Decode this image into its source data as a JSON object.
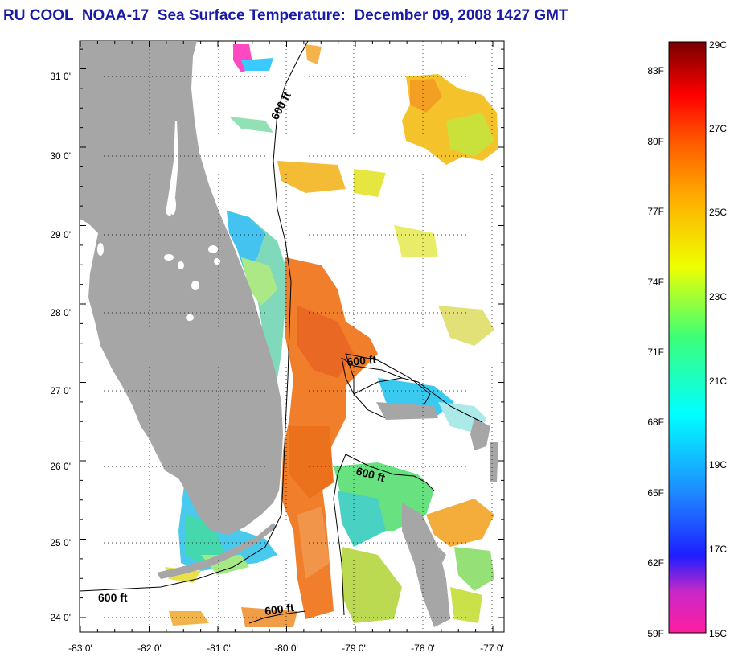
{
  "title": "RU COOL  NOAA-17  Sea Surface Temperature:  December 09, 2008 1427 GMT",
  "map": {
    "lat_ticks": [
      "31 0'",
      "30 0'",
      "29 0'",
      "28 0'",
      "27 0'",
      "26 0'",
      "25 0'",
      "24 0'"
    ],
    "lon_ticks": [
      "-83 0'",
      "-82 0'",
      "-81 0'",
      "-80 0'",
      "-79 0'",
      "-78 0'",
      "-77 0'"
    ],
    "isobath_labels": [
      "600 ft",
      "600 ft",
      "600 ft",
      "600 ft",
      "600 ft"
    ]
  },
  "colorbar": {
    "fahrenheit_labels": [
      "83F",
      "80F",
      "77F",
      "74F",
      "71F",
      "68F",
      "65F",
      "62F",
      "59F"
    ],
    "celsius_labels": [
      "29C",
      "27C",
      "25C",
      "23C",
      "21C",
      "19C",
      "17C",
      "15C"
    ]
  },
  "colors": {
    "land": "#a6a6a6",
    "title": "#1a1aa6"
  }
}
